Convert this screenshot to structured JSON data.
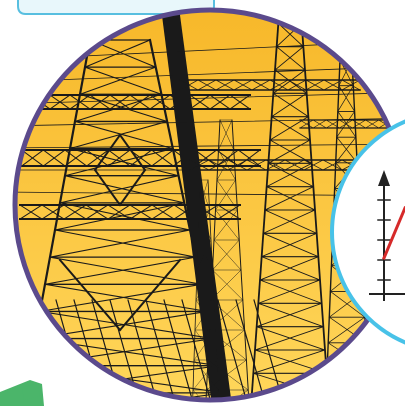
{
  "scene": {
    "subject": "power-transmission-towers",
    "palette": {
      "sky_top": "#f7b82a",
      "sky_bottom": "#ffd65a",
      "lattice": "#1a1a1a",
      "circle_border": "#5b4a8c",
      "top_tab_fill": "#e8f7fb",
      "top_tab_border": "#58bfe0",
      "inset_border": "#48c2e8",
      "inset_fill": "#ffffff",
      "graph_line": "#d62a2a",
      "green_corner": "#4bb56a"
    },
    "inset": {
      "content": "axis-graph",
      "axis": "vertical-and-horizontal-with-ticks",
      "line": "rising-red-line"
    }
  }
}
